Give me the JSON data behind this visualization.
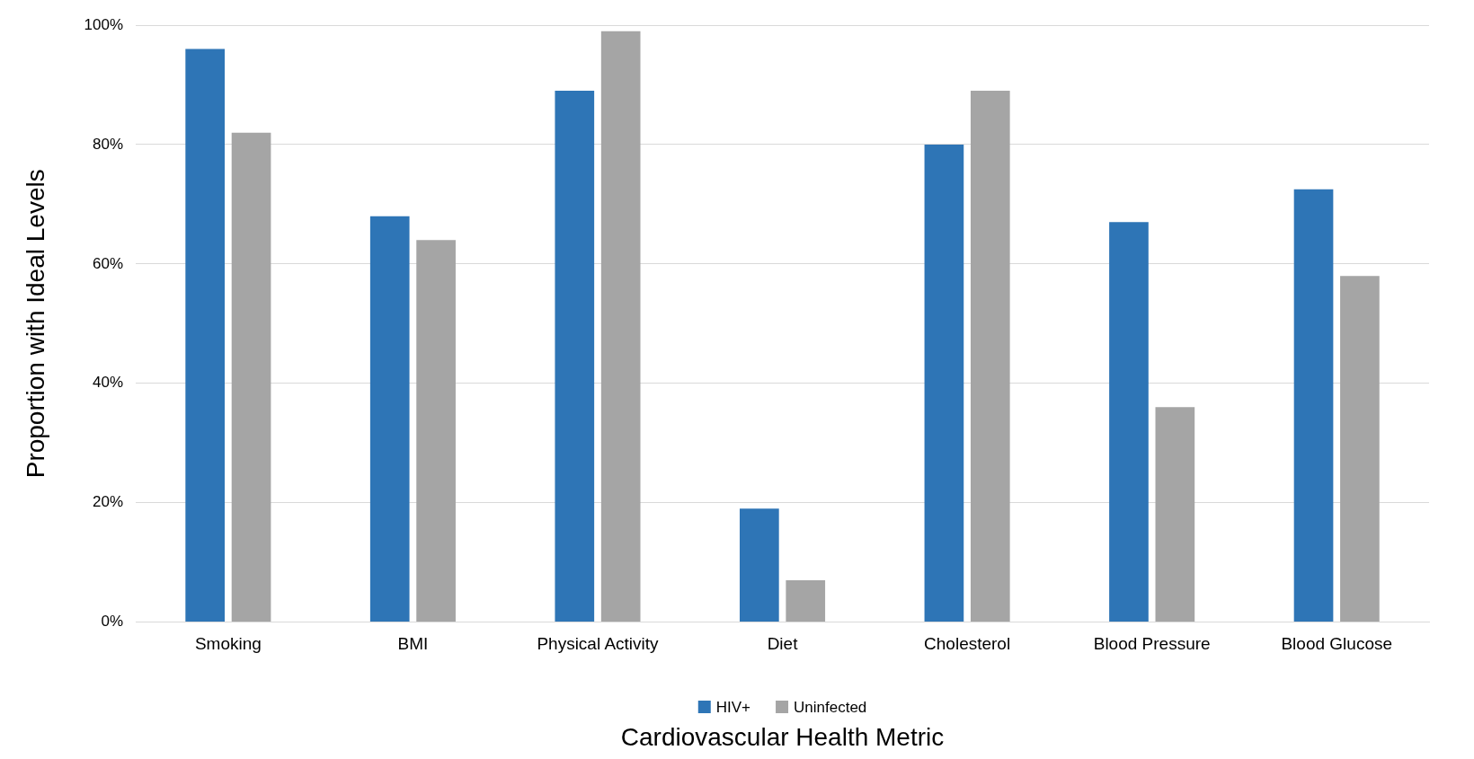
{
  "chart_data": {
    "type": "bar",
    "xlabel": "Cardiovascular Health Metric",
    "ylabel": "Proportion with Ideal Levels",
    "categories": [
      "Smoking",
      "BMI",
      "Physical Activity",
      "Diet",
      "Cholesterol",
      "Blood Pressure",
      "Blood Glucose"
    ],
    "series": [
      {
        "name": "HIV+",
        "color": "#2e75b6",
        "values": [
          96,
          68,
          89,
          19,
          80,
          67,
          72.5
        ]
      },
      {
        "name": "Uninfected",
        "color": "#a5a5a5",
        "values": [
          82,
          64,
          99,
          7,
          89,
          36,
          58
        ]
      }
    ],
    "ylim": [
      0,
      100
    ],
    "yticks": [
      {
        "value": 0,
        "label": "0%"
      },
      {
        "value": 20,
        "label": "20%"
      },
      {
        "value": 40,
        "label": "40%"
      },
      {
        "value": 60,
        "label": "60%"
      },
      {
        "value": 80,
        "label": "80%"
      },
      {
        "value": 100,
        "label": "100%"
      }
    ],
    "grid": "y",
    "legend": "bottom"
  }
}
